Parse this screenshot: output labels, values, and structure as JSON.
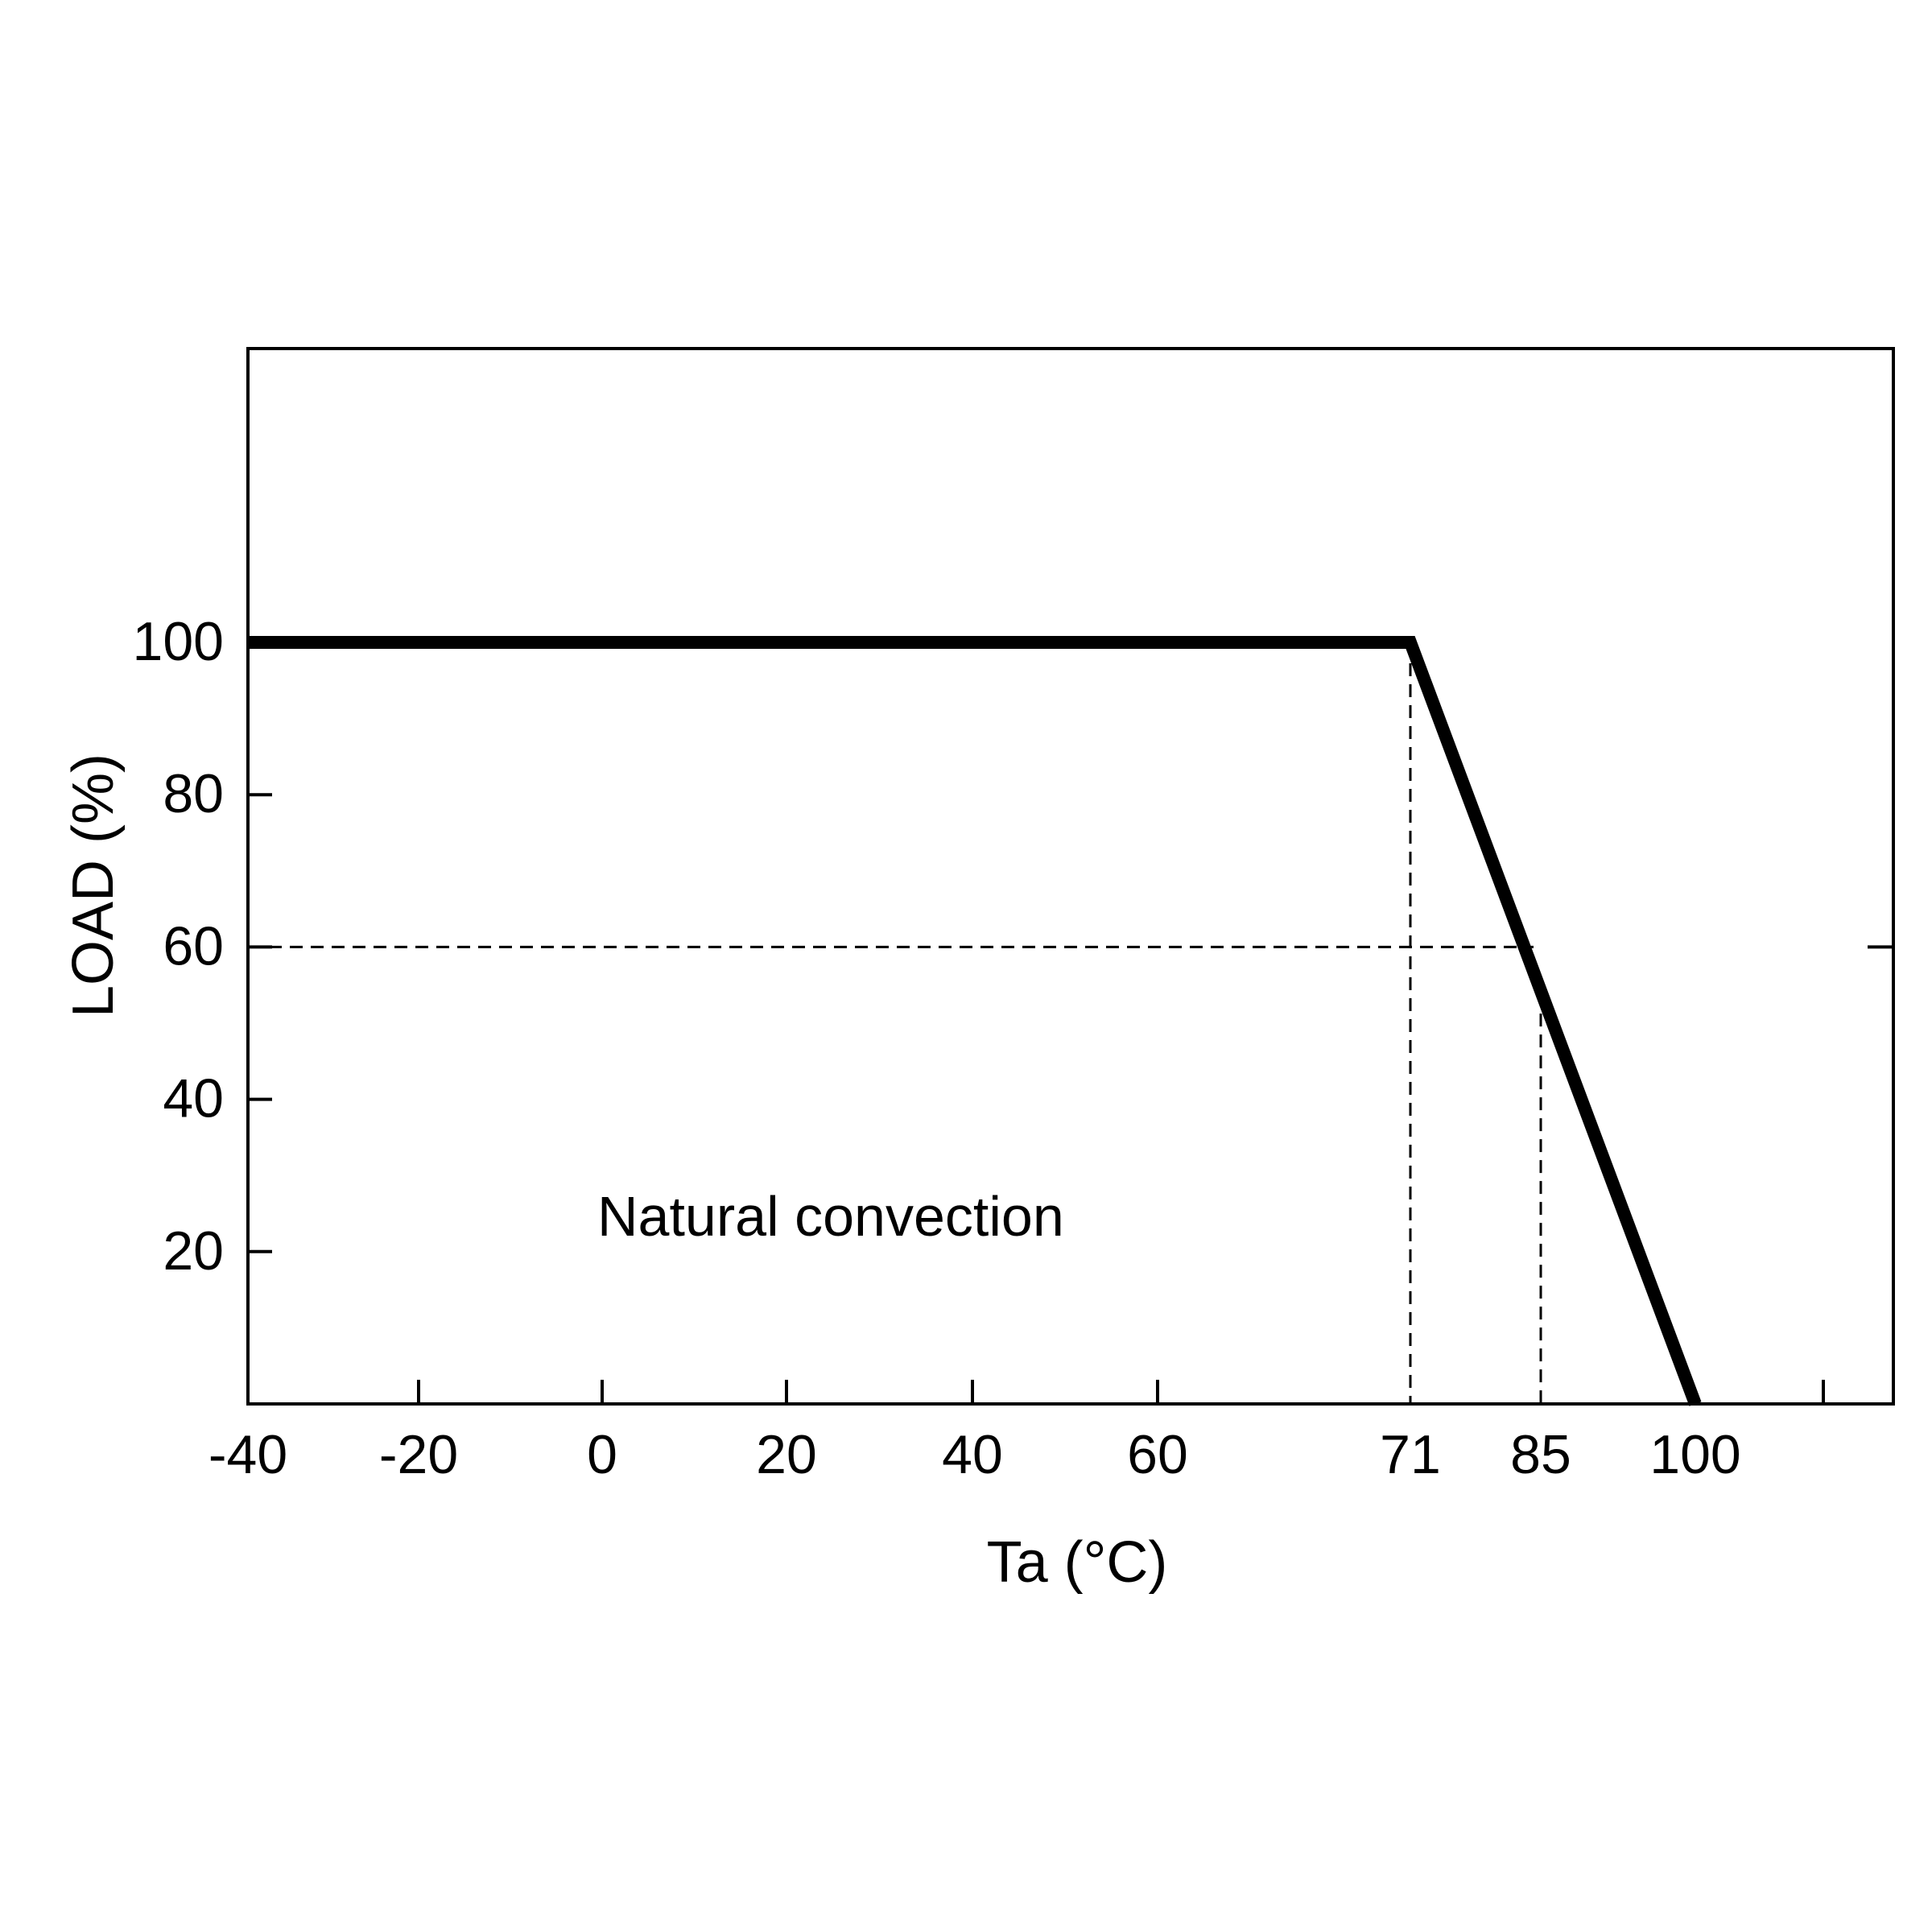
{
  "chart_data": {
    "type": "line",
    "title": "",
    "xlabel": "Ta (°C)",
    "ylabel": "LOAD (%)",
    "x_ticks": [
      -40,
      -20,
      0,
      20,
      40,
      60,
      71,
      85,
      100
    ],
    "x_tick_labels": [
      "-40",
      "-20",
      "0",
      "20",
      "40",
      "60",
      "71",
      "85",
      "100"
    ],
    "y_ticks": [
      20,
      40,
      60,
      80,
      100
    ],
    "y_tick_labels": [
      "20",
      "40",
      "60",
      "80",
      "100"
    ],
    "xlim": [
      -40,
      120
    ],
    "ylim": [
      0,
      120
    ],
    "grid": false,
    "series": [
      {
        "x": [
          -40,
          71,
          100
        ],
        "y": [
          100,
          100,
          0
        ],
        "color": "#000000"
      }
    ],
    "reference_lines": [
      {
        "axis": "x",
        "value": 71,
        "style": "dashed"
      },
      {
        "axis": "x",
        "value": 85,
        "style": "dashed"
      },
      {
        "axis": "y",
        "value": 60,
        "style": "dashed"
      }
    ],
    "annotations": [
      {
        "text": "Natural convection",
        "x": 0,
        "y": 20
      }
    ]
  }
}
